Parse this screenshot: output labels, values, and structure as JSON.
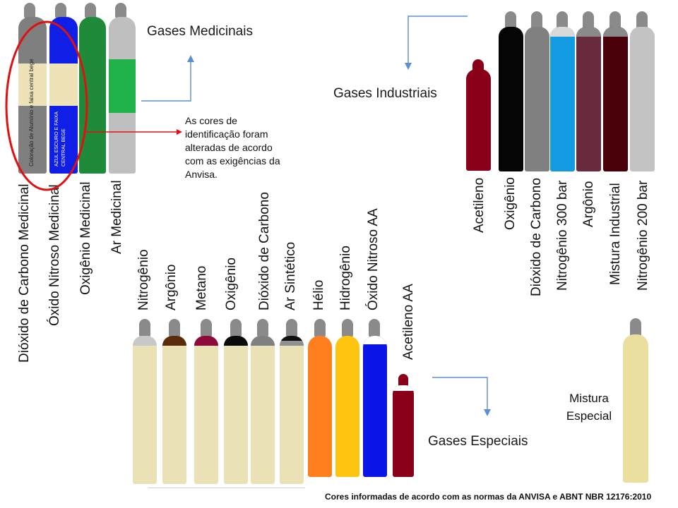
{
  "sections": {
    "medicinal": {
      "title": "Gases Medicinais",
      "cylinders": [
        {
          "label": "Dióxido de Carbono Medicinal",
          "inner_text": "Coloração de Alumínio e faixa central bege",
          "body_color": "#7f7f7f",
          "band_color": "#eee3b8"
        },
        {
          "label": "Óxido Nitroso Medicinal",
          "inner_text": "AZUL ESCURO  E FAIXA CENTRAL BEGE",
          "body_color": "#0f1fe6",
          "band_color": "#eee3b8"
        },
        {
          "label": "Oxigênio Medicinal",
          "body_color": "#1f8a3a"
        },
        {
          "label": "Ar Medicinal",
          "body_color": "#bfbfbf",
          "band_color": "#22b24a"
        }
      ],
      "note": "As cores de identificação foram alteradas de acordo com as exigências da Anvisa."
    },
    "industrial": {
      "title": "Gases Industriais",
      "cylinders": [
        {
          "label": "Acetileno",
          "body_color": "#8b0019"
        },
        {
          "label": "Oxigênio",
          "body_color": "#050505"
        },
        {
          "label": "Dióxido de Carbono",
          "body_color": "#808080"
        },
        {
          "label": "Nitrogênio 300 bar",
          "body_color": "#129be0"
        },
        {
          "label": "Argônio",
          "body_color": "#6a2b3f"
        },
        {
          "label": "Mistura Industrial",
          "body_color": "#4a0008"
        },
        {
          "label": "Nitrogênio 200 bar",
          "body_color": "#c3c3c3"
        }
      ]
    },
    "special": {
      "title": "Gases Especiais",
      "cylinders": [
        {
          "label": "Nitrogênio",
          "body_color": "#ebe1b7",
          "shoulder_color": "#c8c8c8"
        },
        {
          "label": "Argônio",
          "body_color": "#ebe1b7",
          "shoulder_color": "#5a2c0c"
        },
        {
          "label": "Metano",
          "body_color": "#ebe1b7",
          "shoulder_color": "#8c0a3c"
        },
        {
          "label": "Oxigênio",
          "body_color": "#ebe1b7",
          "shoulder_color": "#0a0a0a"
        },
        {
          "label": "Dióxido de Carbono",
          "body_color": "#ebe1b7",
          "shoulder_color": "#808080"
        },
        {
          "label": "Ar Sintético",
          "body_color": "#ebe1b7",
          "shoulder_color": "#101010"
        },
        {
          "label": "Hélio",
          "body_color": "#ff7f1e"
        },
        {
          "label": "Hidrogênio",
          "body_color": "#ffc410"
        },
        {
          "label": "Óxido Nitroso AA",
          "body_color": "#0a14e6",
          "shoulder_color": "#ffffff"
        },
        {
          "label": "Acetileno AA",
          "body_color": "#8b0019",
          "shoulder_color": "#ffffff"
        }
      ]
    },
    "mixture": {
      "label": "Mistura Especial",
      "body_color": "#eadf9e"
    }
  },
  "footer": "Cores informadas de acordo com as normas da ANVISA e ABNT NBR 12176:2010"
}
